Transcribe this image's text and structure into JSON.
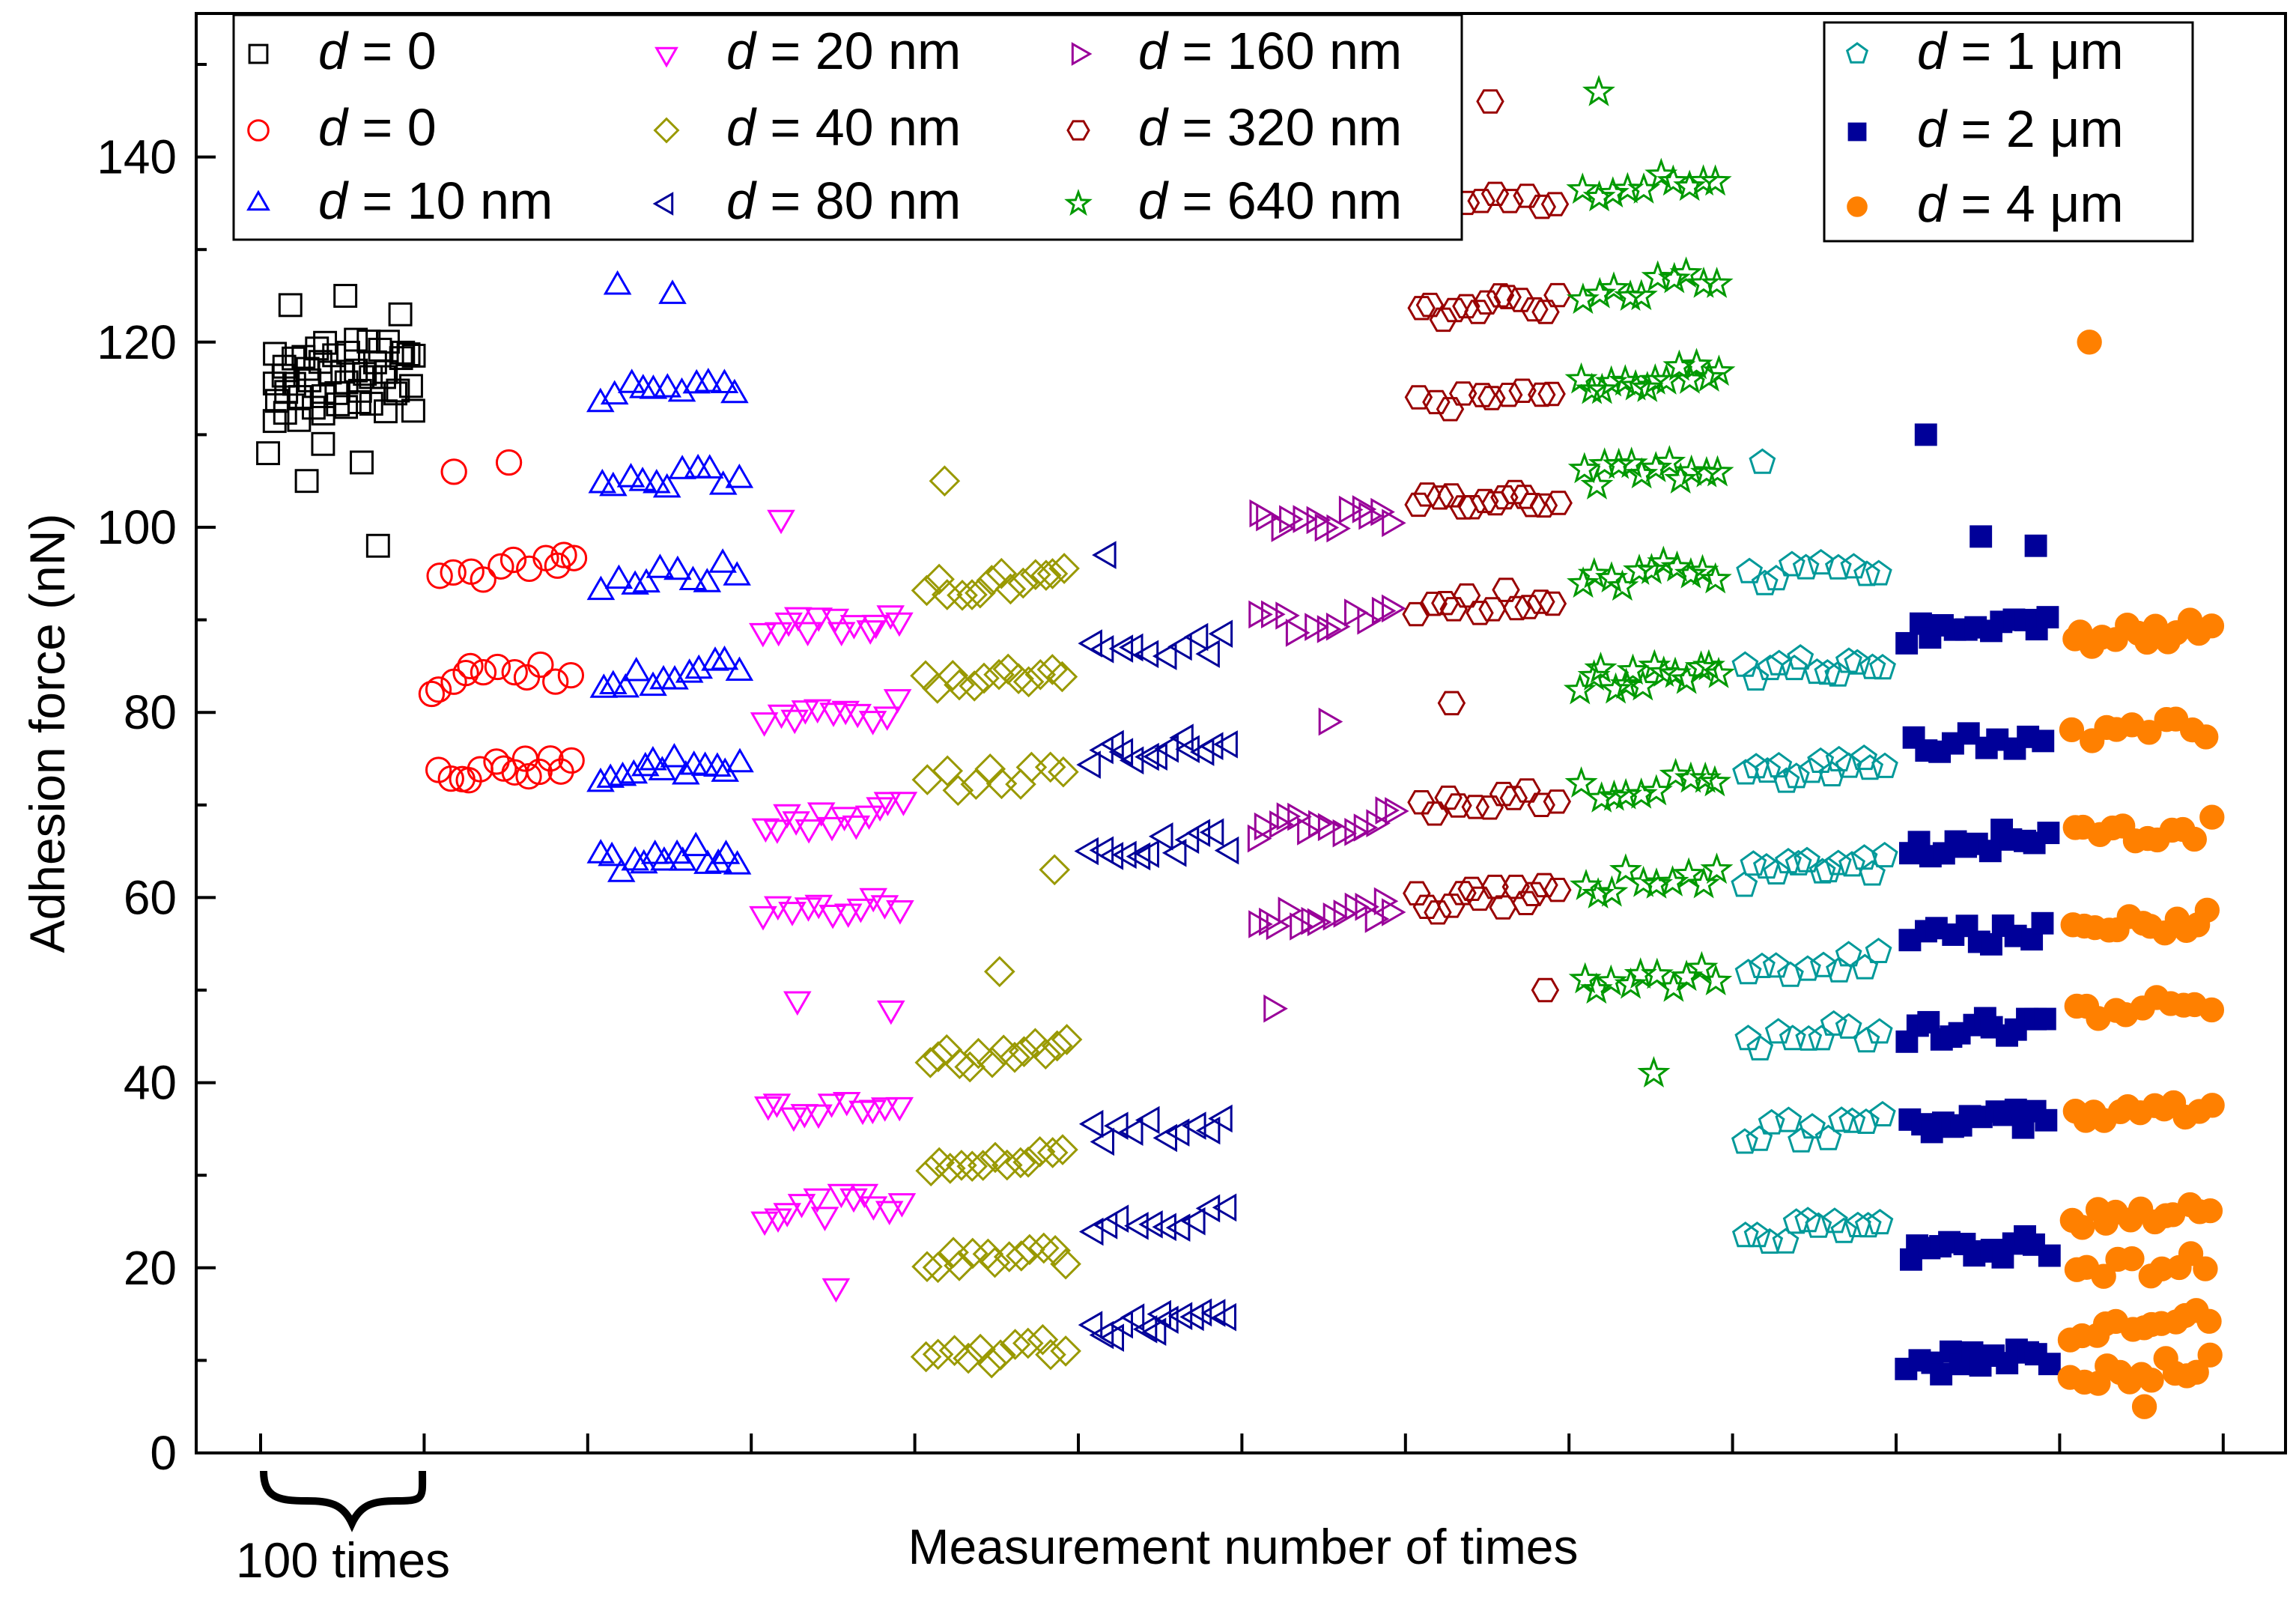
{
  "chart_data": {
    "type": "scatter",
    "title": "",
    "xlabel": "Measurement number of times",
    "ylabel": "Adhesion force (nN)",
    "ylim": [
      0,
      155
    ],
    "yticks": [
      0,
      20,
      40,
      60,
      80,
      100,
      120,
      140
    ],
    "x_groups": 12,
    "group_size": 100,
    "brace_label": "100 times",
    "series": [
      {
        "name": "d = 0",
        "symbol_var": "d",
        "symbol_rest": " = 0",
        "group": 0,
        "marker": "square",
        "color": "#000000",
        "filled": false,
        "levels": [
          113,
          115,
          117,
          119
        ],
        "outliers": [
          124,
          125,
          123,
          105,
          107,
          108,
          109,
          98
        ]
      },
      {
        "name": "d = 0",
        "symbol_var": "d",
        "symbol_rest": " = 0",
        "group": 1,
        "marker": "circle",
        "color": "#ff0000",
        "filled": false,
        "levels": [
          74,
          84,
          95.5
        ],
        "outliers": [
          106,
          107,
          97,
          85,
          75,
          82
        ]
      },
      {
        "name": "d = 10 nm",
        "symbol_var": "d",
        "symbol_rest": " = 10 nm",
        "group": 2,
        "marker": "triangle-up",
        "color": "#0000ff",
        "filled": false,
        "levels": [
          64,
          74,
          84,
          94.5,
          105,
          115
        ],
        "outliers": [
          126,
          125
        ]
      },
      {
        "name": "d = 20 nm",
        "symbol_var": "d",
        "symbol_rest": " = 20 nm",
        "group": 3,
        "marker": "triangle-down",
        "color": "#ff00ff",
        "filled": false,
        "levels": [
          27,
          38,
          59,
          69,
          80,
          90
        ],
        "outliers": [
          101,
          18,
          48,
          49
        ]
      },
      {
        "name": "d = 40 nm",
        "symbol_var": "d",
        "symbol_rest": " = 40 nm",
        "group": 4,
        "marker": "diamond",
        "color": "#999900",
        "filled": false,
        "levels": [
          11,
          21,
          32,
          43,
          73,
          84,
          94
        ],
        "outliers": [
          105,
          52,
          63
        ]
      },
      {
        "name": "d = 80 nm",
        "symbol_var": "d",
        "symbol_rest": " = 80 nm",
        "group": 5,
        "marker": "triangle-left",
        "color": "#000099",
        "filled": false,
        "levels": [
          14,
          25,
          35,
          65.5,
          76,
          87
        ],
        "outliers": [
          97,
          15
        ]
      },
      {
        "name": "d = 160 nm",
        "symbol_var": "d",
        "symbol_rest": " = 160 nm",
        "group": 6,
        "marker": "triangle-right",
        "color": "#990099",
        "filled": false,
        "levels": [
          58,
          68,
          90,
          101
        ],
        "outliers": [
          48,
          79
        ]
      },
      {
        "name": "d = 320 nm",
        "symbol_var": "d",
        "symbol_rest": " = 320 nm",
        "group": 7,
        "marker": "hexagon",
        "color": "#990000",
        "filled": false,
        "levels": [
          60,
          70.5,
          92,
          103,
          114,
          124,
          135
        ],
        "outliers": [
          145,
          146,
          50,
          81
        ]
      },
      {
        "name": "d = 640 nm",
        "symbol_var": "d",
        "symbol_rest": " = 640 nm",
        "group": 8,
        "marker": "star",
        "color": "#009900",
        "filled": false,
        "levels": [
          51,
          62,
          72,
          84,
          95,
          106,
          116,
          126,
          137
        ],
        "outliers": [
          147,
          41
        ]
      },
      {
        "name": "d = 1 μm",
        "symbol_var": "d",
        "symbol_rest": " = 1 μm",
        "group": 9,
        "marker": "pentagon",
        "color": "#009999",
        "filled": false,
        "levels": [
          24,
          35,
          45,
          53,
          63,
          74,
          85,
          95.5
        ],
        "outliers": [
          107
        ]
      },
      {
        "name": "d = 2 μm",
        "symbol_var": "d",
        "symbol_rest": " = 2 μm",
        "group": 10,
        "marker": "square",
        "color": "#000099",
        "filled": true,
        "levels": [
          10,
          22,
          36,
          46,
          56,
          66,
          77,
          89
        ],
        "outliers": [
          110,
          99,
          98
        ]
      },
      {
        "name": "d = 4 μm",
        "symbol_var": "d",
        "symbol_rest": " = 4 μm",
        "group": 11,
        "marker": "circle",
        "color": "#ff8000",
        "filled": true,
        "levels": [
          9,
          14,
          20,
          26,
          37,
          48,
          57,
          67,
          78,
          88.5
        ],
        "outliers": [
          120,
          5
        ]
      }
    ],
    "legend_main": [
      0,
      1,
      2,
      3,
      4,
      5,
      6,
      7,
      8
    ],
    "legend_secondary": [
      9,
      10,
      11
    ],
    "legend_placement": [
      "top-left",
      "top-right"
    ]
  }
}
